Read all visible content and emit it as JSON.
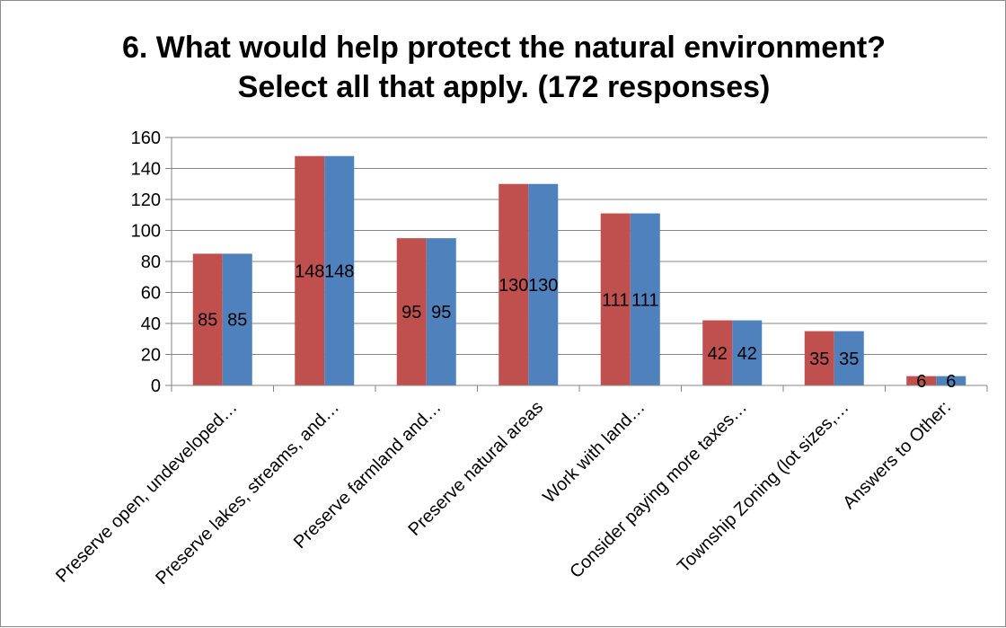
{
  "chart_data": {
    "type": "bar",
    "title_lines": [
      "6. What would help protect the natural environment?",
      "Select all that apply. (172 responses)"
    ],
    "categories": [
      "Preserve open, undeveloped…",
      "Preserve lakes, streams, and…",
      "Preserve farmland and…",
      "Preserve natural areas",
      "Work with land…",
      "Consider paying more taxes…",
      "Township Zoning (lot sizes,…",
      "Answers to Other:"
    ],
    "series": [
      {
        "color": "#c0504d",
        "values": [
          85,
          148,
          95,
          130,
          111,
          42,
          35,
          6
        ]
      },
      {
        "color": "#4f81bd",
        "values": [
          85,
          148,
          95,
          130,
          111,
          42,
          35,
          6
        ]
      }
    ],
    "ylim": [
      0,
      160
    ],
    "yticks": [
      0,
      20,
      40,
      60,
      80,
      100,
      120,
      140,
      160
    ],
    "grid": true,
    "xlabel": "",
    "ylabel": ""
  }
}
